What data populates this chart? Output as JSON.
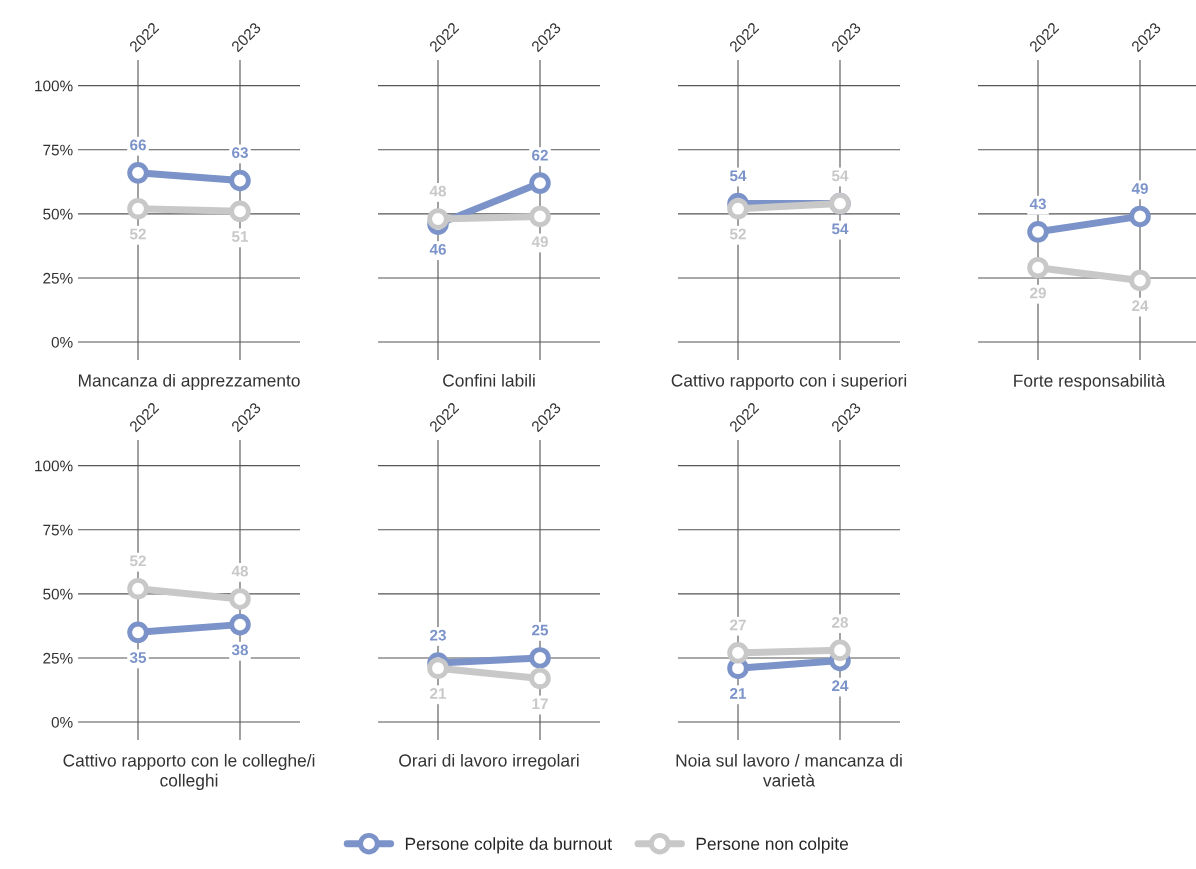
{
  "chart_data": [
    {
      "type": "line",
      "xlabel": "Mancanza di apprezzamento",
      "categories": [
        "2022",
        "2023"
      ],
      "ylim": [
        -7,
        110
      ],
      "yticks": [
        {
          "value": 0,
          "label": "0%"
        },
        {
          "value": 25,
          "label": "25%"
        },
        {
          "value": 50,
          "label": "50%"
        },
        {
          "value": 75,
          "label": "75%"
        },
        {
          "value": 100,
          "label": "100%"
        }
      ],
      "grid": true,
      "marker": "circle",
      "data_labels": true,
      "legend": "bottom",
      "series": [
        {
          "name": "Persone colpite da burnout",
          "color": "#7b93c8",
          "values": [
            66,
            63
          ]
        },
        {
          "name": "Persone non colpite",
          "color": "#c8c8c8",
          "values": [
            52,
            51
          ]
        }
      ]
    },
    {
      "type": "line",
      "xlabel": "Confini labili",
      "categories": [
        "2022",
        "2023"
      ],
      "ylim": [
        -7,
        110
      ],
      "yticks": [
        0,
        25,
        50,
        75,
        100
      ],
      "tick_labels": "x",
      "grid": true,
      "marker": "circle",
      "data_labels": true,
      "series": [
        {
          "color": "#7b93c8",
          "values": [
            46,
            62
          ]
        },
        {
          "color": "#c8c8c8",
          "values": [
            48,
            49
          ]
        }
      ]
    },
    {
      "type": "line",
      "xlabel": "Cattivo rapporto con i superiori",
      "categories": [
        "2022",
        "2023"
      ],
      "ylim": [
        -7,
        110
      ],
      "yticks": [
        0,
        25,
        50,
        75,
        100
      ],
      "tick_labels": "x",
      "grid": true,
      "marker": "circle",
      "data_labels": true,
      "series": [
        {
          "color": "#7b93c8",
          "values": [
            54,
            54
          ]
        },
        {
          "color": "#c8c8c8",
          "values": [
            52,
            54
          ]
        }
      ]
    },
    {
      "type": "line",
      "xlabel": "Forte responsabilità",
      "categories": [
        "2022",
        "2023"
      ],
      "ylim": [
        -7,
        110
      ],
      "yticks": [
        0,
        25,
        50,
        75,
        100
      ],
      "tick_labels": "x",
      "grid": true,
      "marker": "circle",
      "data_labels": true,
      "series": [
        {
          "color": "#7b93c8",
          "values": [
            43,
            49
          ]
        },
        {
          "color": "#c8c8c8",
          "values": [
            29,
            24
          ]
        }
      ]
    },
    {
      "type": "line",
      "xlabel": "Cattivo rapporto con le colleghe/i colleghi",
      "categories": [
        "2022",
        "2023"
      ],
      "ylim": [
        -7,
        110
      ],
      "yticks": [
        {
          "value": 0,
          "label": "0%"
        },
        {
          "value": 25,
          "label": "25%"
        },
        {
          "value": 50,
          "label": "50%"
        },
        {
          "value": 75,
          "label": "75%"
        },
        {
          "value": 100,
          "label": "100%"
        }
      ],
      "grid": true,
      "marker": "circle",
      "data_labels": true,
      "series": [
        {
          "color": "#7b93c8",
          "values": [
            35,
            38
          ]
        },
        {
          "color": "#c8c8c8",
          "values": [
            52,
            48
          ]
        }
      ]
    },
    {
      "type": "line",
      "xlabel": "Orari di lavoro irregolari",
      "categories": [
        "2022",
        "2023"
      ],
      "ylim": [
        -7,
        110
      ],
      "yticks": [
        0,
        25,
        50,
        75,
        100
      ],
      "tick_labels": "x",
      "grid": true,
      "marker": "circle",
      "data_labels": true,
      "series": [
        {
          "color": "#7b93c8",
          "values": [
            23,
            25
          ]
        },
        {
          "color": "#c8c8c8",
          "values": [
            21,
            17
          ]
        }
      ]
    },
    {
      "type": "line",
      "xlabel": "Noia sul lavoro / mancanza di varietà",
      "categories": [
        "2022",
        "2023"
      ],
      "ylim": [
        -7,
        110
      ],
      "yticks": [
        0,
        25,
        50,
        75,
        100
      ],
      "tick_labels": "x",
      "grid": true,
      "marker": "circle",
      "data_labels": true,
      "series": [
        {
          "color": "#7b93c8",
          "values": [
            21,
            24
          ]
        },
        {
          "color": "#c8c8c8",
          "values": [
            27,
            28
          ]
        }
      ]
    }
  ]
}
